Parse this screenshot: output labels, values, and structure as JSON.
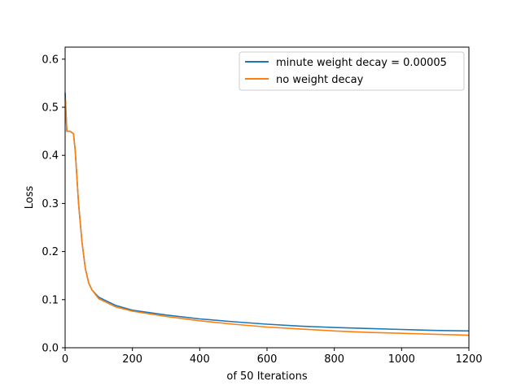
{
  "chart_data": {
    "type": "line",
    "title": "",
    "xlabel": "of 50 Iterations",
    "ylabel": "Loss",
    "xlim": [
      0,
      1200
    ],
    "ylim": [
      0,
      0.625
    ],
    "xticks": [
      0,
      200,
      400,
      600,
      800,
      1000,
      1200
    ],
    "yticks": [
      0.0,
      0.1,
      0.2,
      0.3,
      0.4,
      0.5,
      0.6
    ],
    "xtick_labels": [
      "0",
      "200",
      "400",
      "600",
      "800",
      "1000",
      "1200"
    ],
    "ytick_labels": [
      "0.0",
      "0.1",
      "0.2",
      "0.3",
      "0.4",
      "0.5",
      "0.6"
    ],
    "grid": false,
    "legend": {
      "position": "upper right"
    },
    "series": [
      {
        "name": "minute weight decay = 0.00005",
        "color": "#1f77b4",
        "x": [
          0,
          5,
          15,
          25,
          30,
          40,
          50,
          60,
          70,
          80,
          100,
          150,
          200,
          300,
          400,
          500,
          600,
          700,
          800,
          900,
          1000,
          1100,
          1200
        ],
        "y": [
          0.53,
          0.45,
          0.45,
          0.445,
          0.41,
          0.3,
          0.22,
          0.165,
          0.135,
          0.12,
          0.105,
          0.088,
          0.078,
          0.068,
          0.06,
          0.054,
          0.049,
          0.045,
          0.042,
          0.04,
          0.038,
          0.036,
          0.035
        ]
      },
      {
        "name": "no weight decay",
        "color": "#ff7f0e",
        "x": [
          0,
          5,
          15,
          25,
          30,
          40,
          50,
          60,
          70,
          80,
          100,
          150,
          200,
          300,
          400,
          500,
          600,
          700,
          800,
          900,
          1000,
          1100,
          1200
        ],
        "y": [
          0.52,
          0.45,
          0.45,
          0.445,
          0.41,
          0.3,
          0.22,
          0.165,
          0.135,
          0.12,
          0.102,
          0.085,
          0.076,
          0.065,
          0.056,
          0.049,
          0.043,
          0.039,
          0.035,
          0.032,
          0.03,
          0.028,
          0.026
        ]
      }
    ]
  }
}
